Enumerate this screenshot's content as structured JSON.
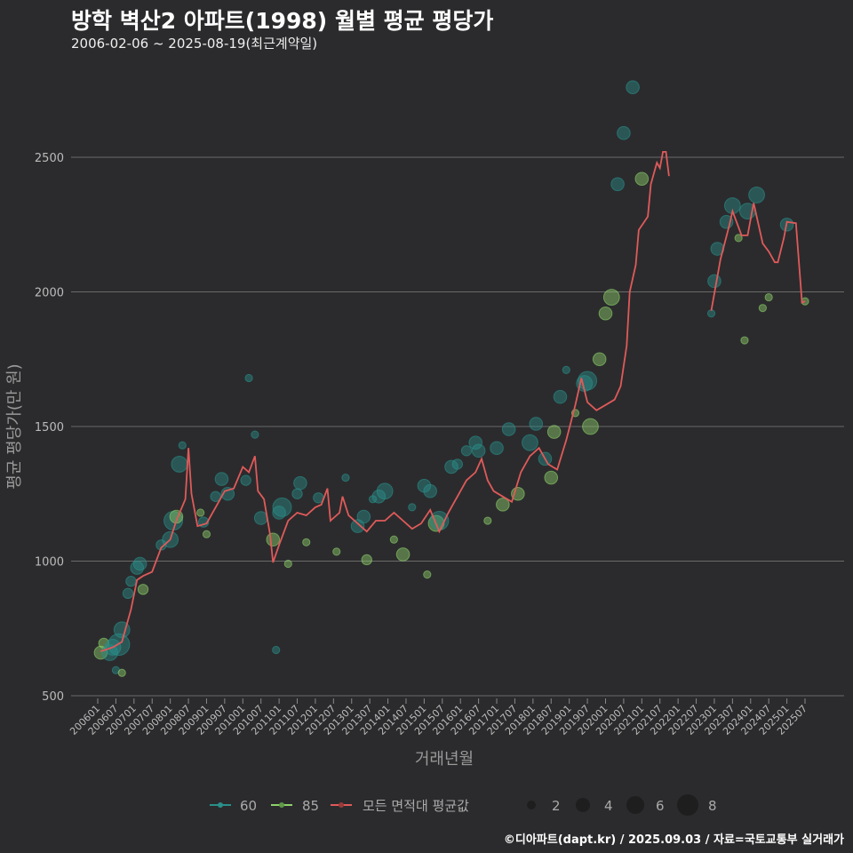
{
  "header": {
    "title": "방학 벽산2 아파트(1998) 월별 평균 평당가",
    "subtitle": "2006-02-06 ~ 2025-08-19(최근계약일)"
  },
  "footer": "©디아파트(dapt.kr) / 2025.09.03 / 자료=국토교통부 실거래가",
  "chart_data": {
    "type": "line+scatter",
    "title": "방학 벽산2 아파트(1998) 월별 평균 평당가",
    "xlabel": "거래년월",
    "ylabel": "평균 평당가(만 원)",
    "ylim": [
      500,
      2750
    ],
    "yticks": [
      500,
      1000,
      1500,
      2000,
      2500
    ],
    "xticks": [
      "200601",
      "200607",
      "200701",
      "200707",
      "200801",
      "200807",
      "200901",
      "200907",
      "201001",
      "201007",
      "201101",
      "201107",
      "201201",
      "201207",
      "201301",
      "201307",
      "201401",
      "201407",
      "201501",
      "201507",
      "201601",
      "201607",
      "201701",
      "201707",
      "201801",
      "201807",
      "201901",
      "201907",
      "202001",
      "202007",
      "202101",
      "202107",
      "202201",
      "202207",
      "202301",
      "202307",
      "202401",
      "202407",
      "202501",
      "202507"
    ],
    "grid": true,
    "legend": {
      "placement": "bottom",
      "series": [
        {
          "label": "60",
          "color": "#2a8f8a"
        },
        {
          "label": "85",
          "color": "#8ed16a"
        },
        {
          "label": "모든 면적대 평균값",
          "color": "#e05a5a"
        }
      ],
      "sizes": [
        2,
        4,
        6,
        8
      ]
    },
    "avg_line": [
      [
        [
          "200602",
          665
        ],
        [
          "200606",
          680
        ],
        [
          "200609",
          700
        ],
        [
          "200612",
          820
        ],
        [
          "200702",
          930
        ],
        [
          "200704",
          945
        ],
        [
          "200707",
          960
        ],
        [
          "200710",
          1050
        ],
        [
          "200801",
          1080
        ],
        [
          "200803",
          1150
        ],
        [
          "200806",
          1230
        ],
        [
          "200807",
          1420
        ],
        [
          "200808",
          1250
        ],
        [
          "200810",
          1130
        ],
        [
          "200901",
          1140
        ],
        [
          "200904",
          1200
        ],
        [
          "200907",
          1260
        ],
        [
          "200910",
          1270
        ],
        [
          "201001",
          1350
        ],
        [
          "201003",
          1330
        ],
        [
          "201005",
          1390
        ],
        [
          "201006",
          1260
        ],
        [
          "201008",
          1230
        ],
        [
          "201010",
          1100
        ],
        [
          "201011",
          995
        ],
        [
          "201101",
          1060
        ],
        [
          "201104",
          1150
        ],
        [
          "201107",
          1180
        ],
        [
          "201110",
          1170
        ],
        [
          "201201",
          1200
        ],
        [
          "201203",
          1210
        ],
        [
          "201205",
          1270
        ],
        [
          "201206",
          1150
        ],
        [
          "201209",
          1180
        ],
        [
          "201210",
          1240
        ],
        [
          "201212",
          1170
        ],
        [
          "201303",
          1140
        ],
        [
          "201306",
          1110
        ],
        [
          "201309",
          1150
        ],
        [
          "201312",
          1150
        ],
        [
          "201403",
          1180
        ],
        [
          "201406",
          1150
        ],
        [
          "201409",
          1120
        ],
        [
          "201412",
          1140
        ],
        [
          "201503",
          1190
        ],
        [
          "201506",
          1110
        ],
        [
          "201509",
          1180
        ],
        [
          "201512",
          1240
        ],
        [
          "201603",
          1300
        ],
        [
          "201606",
          1330
        ],
        [
          "201608",
          1380
        ],
        [
          "201610",
          1300
        ],
        [
          "201612",
          1260
        ],
        [
          "201703",
          1240
        ],
        [
          "201706",
          1220
        ],
        [
          "201709",
          1330
        ],
        [
          "201712",
          1390
        ],
        [
          "201803",
          1420
        ],
        [
          "201806",
          1360
        ],
        [
          "201809",
          1340
        ],
        [
          "201812",
          1450
        ],
        [
          "201903",
          1580
        ],
        [
          "201905",
          1680
        ],
        [
          "201907",
          1590
        ],
        [
          "201910",
          1560
        ],
        [
          "202001",
          1580
        ],
        [
          "202004",
          1600
        ],
        [
          "202006",
          1650
        ],
        [
          "202008",
          1800
        ],
        [
          "202009",
          2000
        ],
        [
          "202011",
          2100
        ],
        [
          "202012",
          2230
        ],
        [
          "202103",
          2280
        ],
        [
          "202104",
          2400
        ],
        [
          "202106",
          2480
        ],
        [
          "202107",
          2460
        ],
        [
          "202108",
          2520
        ],
        [
          "202109",
          2520
        ],
        [
          "202110",
          2430
        ]
      ],
      [
        [
          "202212",
          1930
        ],
        [
          "202303",
          2120
        ],
        [
          "202306",
          2250
        ],
        [
          "202307",
          2300
        ],
        [
          "202310",
          2210
        ],
        [
          "202312",
          2210
        ],
        [
          "202402",
          2330
        ],
        [
          "202405",
          2180
        ],
        [
          "202407",
          2150
        ],
        [
          "202409",
          2110
        ],
        [
          "202410",
          2110
        ],
        [
          "202412",
          2200
        ],
        [
          "202501",
          2260
        ],
        [
          "202504",
          2255
        ],
        [
          "202506",
          1960
        ],
        [
          "202507",
          1965
        ]
      ]
    ],
    "points": [
      [
        "200602",
        660,
        3,
        "85"
      ],
      [
        "200603",
        695,
        2,
        "85"
      ],
      [
        "200605",
        660,
        4,
        "60"
      ],
      [
        "200606",
        680,
        4,
        "60"
      ],
      [
        "200607",
        595,
        1,
        "60"
      ],
      [
        "200608",
        690,
        6,
        "60"
      ],
      [
        "200609",
        745,
        4,
        "60"
      ],
      [
        "200609",
        585,
        1,
        "85"
      ],
      [
        "200611",
        880,
        2,
        "60"
      ],
      [
        "200612",
        925,
        2,
        "60"
      ],
      [
        "200702",
        975,
        3,
        "60"
      ],
      [
        "200703",
        990,
        3,
        "60"
      ],
      [
        "200704",
        895,
        2,
        "85"
      ],
      [
        "200710",
        1060,
        2,
        "60"
      ],
      [
        "200801",
        1080,
        4,
        "60"
      ],
      [
        "200802",
        1150,
        5,
        "60"
      ],
      [
        "200803",
        1165,
        3,
        "85"
      ],
      [
        "200804",
        1360,
        4,
        "60"
      ],
      [
        "200805",
        1430,
        1,
        "60"
      ],
      [
        "200811",
        1180,
        1,
        "85"
      ],
      [
        "200812",
        1145,
        2,
        "60"
      ],
      [
        "200901",
        1100,
        1,
        "85"
      ],
      [
        "200904",
        1240,
        2,
        "60"
      ],
      [
        "200906",
        1305,
        3,
        "60"
      ],
      [
        "200908",
        1250,
        3,
        "60"
      ],
      [
        "201002",
        1300,
        2,
        "60"
      ],
      [
        "201003",
        1680,
        1,
        "60"
      ],
      [
        "201005",
        1470,
        1,
        "60"
      ],
      [
        "201007",
        1160,
        3,
        "60"
      ],
      [
        "201011",
        1080,
        3,
        "85"
      ],
      [
        "201012",
        670,
        1,
        "60"
      ],
      [
        "201101",
        1180,
        3,
        "60"
      ],
      [
        "201102",
        1200,
        5,
        "60"
      ],
      [
        "201104",
        990,
        1,
        "85"
      ],
      [
        "201107",
        1250,
        2,
        "60"
      ],
      [
        "201108",
        1290,
        3,
        "60"
      ],
      [
        "201110",
        1070,
        1,
        "85"
      ],
      [
        "201202",
        1235,
        2,
        "60"
      ],
      [
        "201208",
        1035,
        1,
        "85"
      ],
      [
        "201211",
        1310,
        1,
        "60"
      ],
      [
        "201303",
        1130,
        3,
        "60"
      ],
      [
        "201305",
        1165,
        3,
        "60"
      ],
      [
        "201306",
        1005,
        2,
        "85"
      ],
      [
        "201308",
        1230,
        1,
        "60"
      ],
      [
        "201310",
        1240,
        3,
        "60"
      ],
      [
        "201312",
        1260,
        4,
        "60"
      ],
      [
        "201403",
        1080,
        1,
        "85"
      ],
      [
        "201406",
        1025,
        3,
        "85"
      ],
      [
        "201409",
        1200,
        1,
        "60"
      ],
      [
        "201501",
        1280,
        3,
        "60"
      ],
      [
        "201502",
        950,
        1,
        "85"
      ],
      [
        "201503",
        1260,
        3,
        "60"
      ],
      [
        "201505",
        1140,
        4,
        "85"
      ],
      [
        "201506",
        1150,
        5,
        "60"
      ],
      [
        "201510",
        1350,
        3,
        "60"
      ],
      [
        "201512",
        1360,
        2,
        "60"
      ],
      [
        "201603",
        1410,
        2,
        "60"
      ],
      [
        "201606",
        1440,
        3,
        "60"
      ],
      [
        "201607",
        1410,
        3,
        "60"
      ],
      [
        "201610",
        1150,
        1,
        "85"
      ],
      [
        "201701",
        1420,
        3,
        "60"
      ],
      [
        "201703",
        1210,
        3,
        "85"
      ],
      [
        "201705",
        1490,
        3,
        "60"
      ],
      [
        "201708",
        1250,
        3,
        "85"
      ],
      [
        "201712",
        1440,
        4,
        "60"
      ],
      [
        "201802",
        1510,
        3,
        "60"
      ],
      [
        "201805",
        1380,
        3,
        "60"
      ],
      [
        "201807",
        1310,
        3,
        "85"
      ],
      [
        "201808",
        1480,
        3,
        "85"
      ],
      [
        "201810",
        1610,
        3,
        "60"
      ],
      [
        "201812",
        1710,
        1,
        "60"
      ],
      [
        "201903",
        1550,
        1,
        "85"
      ],
      [
        "201906",
        1660,
        4,
        "60"
      ],
      [
        "201907",
        1670,
        5,
        "60"
      ],
      [
        "201908",
        1500,
        4,
        "85"
      ],
      [
        "201911",
        1750,
        3,
        "85"
      ],
      [
        "202001",
        1920,
        3,
        "85"
      ],
      [
        "202003",
        1980,
        4,
        "85"
      ],
      [
        "202005",
        2400,
        3,
        "60"
      ],
      [
        "202007",
        2590,
        3,
        "60"
      ],
      [
        "202010",
        2760,
        3,
        "60"
      ],
      [
        "202101",
        2420,
        3,
        "85"
      ],
      [
        "202212",
        1920,
        1,
        "60"
      ],
      [
        "202301",
        2040,
        3,
        "60"
      ],
      [
        "202302",
        2160,
        3,
        "60"
      ],
      [
        "202305",
        2260,
        3,
        "60"
      ],
      [
        "202307",
        2320,
        4,
        "60"
      ],
      [
        "202309",
        2200,
        1,
        "85"
      ],
      [
        "202311",
        1820,
        1,
        "85"
      ],
      [
        "202312",
        2300,
        4,
        "60"
      ],
      [
        "202403",
        2360,
        4,
        "60"
      ],
      [
        "202405",
        1940,
        1,
        "85"
      ],
      [
        "202407",
        1980,
        1,
        "85"
      ],
      [
        "202501",
        2250,
        3,
        "60"
      ],
      [
        "202507",
        1965,
        1,
        "85"
      ]
    ]
  }
}
